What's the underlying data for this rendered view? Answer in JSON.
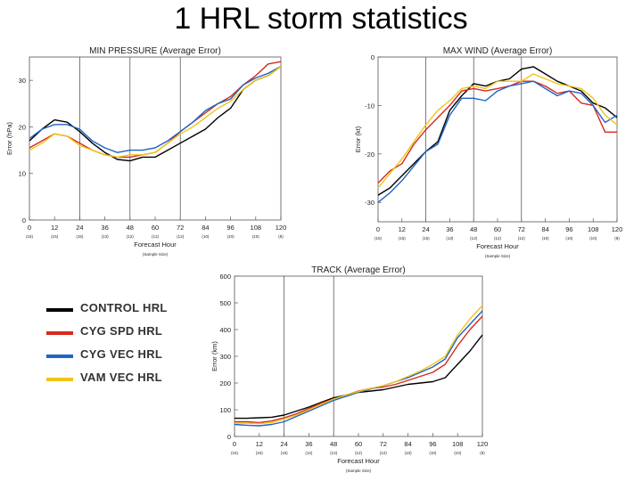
{
  "slide": {
    "title": "1 HRL storm statistics"
  },
  "legend": {
    "items": [
      {
        "label": "CONTROL HRL",
        "color": "#000000"
      },
      {
        "label": "CYG SPD HRL",
        "color": "#d62a1e"
      },
      {
        "label": "CYG VEC HRL",
        "color": "#1e64c8"
      },
      {
        "label": "VAM VEC HRL",
        "color": "#f0c419"
      }
    ]
  },
  "chart_data": [
    {
      "id": "min-pressure",
      "type": "line",
      "title": "MIN PRESSURE (Average Error)",
      "xlabel": "Forecast Hour",
      "ylabel": "Error (hPa)",
      "sample_size_label": "(Sample Size)",
      "x": [
        0,
        6,
        12,
        18,
        24,
        30,
        36,
        42,
        48,
        54,
        60,
        66,
        72,
        78,
        84,
        90,
        96,
        102,
        108,
        114,
        120
      ],
      "xticks": [
        0,
        12,
        24,
        36,
        48,
        60,
        72,
        84,
        96,
        108,
        120
      ],
      "xticklabels": [
        "0",
        "12",
        "24",
        "36",
        "48",
        "60",
        "72",
        "84",
        "96",
        "108",
        "120"
      ],
      "yticks": [
        0,
        10,
        20,
        30
      ],
      "yticklabels": [
        "0",
        "10",
        "20",
        "30"
      ],
      "sample_sizes": [
        "(15)",
        "(15)",
        "(15)",
        "(13)",
        "(12)",
        "(12)",
        "(12)",
        "(10)",
        "(10)",
        "(10)",
        "(8)"
      ],
      "vlines": [
        24,
        48,
        72
      ],
      "xlim": [
        0,
        120
      ],
      "ylim": [
        0,
        35
      ],
      "series": [
        {
          "name": "CONTROL HRL",
          "color": "#000000",
          "values": [
            17,
            19.5,
            21.5,
            21,
            19,
            16.5,
            14.5,
            13,
            12.7,
            13.5,
            13.5,
            15,
            16.5,
            18,
            19.5,
            22,
            24,
            28,
            30,
            31,
            33
          ]
        },
        {
          "name": "CYG SPD HRL",
          "color": "#d62a1e",
          "values": [
            15.5,
            17,
            18.5,
            18,
            16.5,
            15,
            14,
            13.5,
            13.5,
            14,
            14.5,
            16.5,
            19,
            21,
            23,
            25,
            26.5,
            29,
            31,
            33.5,
            34
          ]
        },
        {
          "name": "CYG VEC HRL",
          "color": "#1e64c8",
          "values": [
            17.5,
            19.5,
            20.5,
            20.5,
            19.5,
            17,
            15.5,
            14.5,
            15,
            15,
            15.5,
            17,
            19,
            21,
            23.5,
            25,
            26,
            29,
            30.5,
            31.5,
            33
          ]
        },
        {
          "name": "VAM VEC HRL",
          "color": "#f0c419",
          "values": [
            15,
            16.5,
            18.5,
            18,
            16,
            15,
            14,
            13.5,
            14,
            14,
            14.5,
            16.5,
            18.5,
            20,
            22,
            24,
            25.5,
            28,
            30,
            31,
            33
          ]
        }
      ]
    },
    {
      "id": "max-wind",
      "type": "line",
      "title": "MAX WIND (Average Error)",
      "xlabel": "Forecast Hour",
      "ylabel": "Error (kt)",
      "sample_size_label": "(Sample Size)",
      "x": [
        0,
        6,
        12,
        18,
        24,
        30,
        36,
        42,
        48,
        54,
        60,
        66,
        72,
        78,
        84,
        90,
        96,
        102,
        108,
        114,
        120
      ],
      "xticks": [
        0,
        12,
        24,
        36,
        48,
        60,
        72,
        84,
        96,
        108,
        120
      ],
      "xticklabels": [
        "0",
        "12",
        "24",
        "36",
        "48",
        "60",
        "72",
        "84",
        "96",
        "108",
        "120"
      ],
      "yticks": [
        0,
        -10,
        -20,
        -30
      ],
      "yticklabels": [
        "0",
        "-10",
        "-20",
        "-30"
      ],
      "sample_sizes": [
        "(15)",
        "(15)",
        "(15)",
        "(13)",
        "(12)",
        "(12)",
        "(12)",
        "(10)",
        "(10)",
        "(10)",
        "(8)"
      ],
      "vlines": [
        24,
        48,
        72
      ],
      "xlim": [
        0,
        120
      ],
      "ylim": [
        -34,
        0
      ],
      "series": [
        {
          "name": "CONTROL HRL",
          "color": "#000000",
          "values": [
            -28.5,
            -27,
            -24.5,
            -22,
            -19.5,
            -17.5,
            -11,
            -8,
            -5.5,
            -6,
            -5,
            -4.5,
            -2.5,
            -2,
            -3.5,
            -5,
            -6,
            -7,
            -9.5,
            -10.5,
            -12.5
          ]
        },
        {
          "name": "CYG SPD HRL",
          "color": "#d62a1e",
          "values": [
            -26,
            -23.5,
            -22,
            -18,
            -15,
            -12.5,
            -10,
            -7,
            -6.5,
            -7,
            -6.5,
            -6,
            -5,
            -5,
            -6,
            -7.5,
            -7,
            -9.5,
            -10,
            -15.5,
            -15.5
          ]
        },
        {
          "name": "CYG VEC HRL",
          "color": "#1e64c8",
          "values": [
            -30,
            -28,
            -25.5,
            -22.5,
            -19.5,
            -18,
            -12,
            -8.5,
            -8.5,
            -9,
            -7,
            -6,
            -5.5,
            -5,
            -6.5,
            -8,
            -7,
            -7.5,
            -10,
            -13.5,
            -12
          ]
        },
        {
          "name": "VAM VEC HRL",
          "color": "#f0c419",
          "values": [
            -27,
            -24,
            -21,
            -17.5,
            -14,
            -11,
            -9,
            -6.5,
            -6,
            -6.5,
            -5,
            -5,
            -5,
            -3.5,
            -4.5,
            -5.5,
            -6,
            -6.5,
            -8.5,
            -12,
            -14
          ]
        }
      ]
    },
    {
      "id": "track",
      "type": "line",
      "title": "TRACK (Average Error)",
      "xlabel": "Forecast Hour",
      "ylabel": "Error (km)",
      "sample_size_label": "(Sample Size)",
      "x": [
        0,
        6,
        12,
        18,
        24,
        30,
        36,
        42,
        48,
        54,
        60,
        66,
        72,
        78,
        84,
        90,
        96,
        102,
        108,
        114,
        120
      ],
      "xticks": [
        0,
        12,
        24,
        36,
        48,
        60,
        72,
        84,
        96,
        108,
        120
      ],
      "xticklabels": [
        "0",
        "12",
        "24",
        "36",
        "48",
        "60",
        "72",
        "84",
        "96",
        "108",
        "120"
      ],
      "yticks": [
        0,
        100,
        200,
        300,
        400,
        500,
        600
      ],
      "yticklabels": [
        "0",
        "100",
        "200",
        "300",
        "400",
        "500",
        "600"
      ],
      "sample_sizes": [
        "(15)",
        "(15)",
        "(15)",
        "(12)",
        "(12)",
        "(12)",
        "(12)",
        "(10)",
        "(10)",
        "(10)",
        "(8)"
      ],
      "vlines": [
        24,
        48
      ],
      "xlim": [
        0,
        120
      ],
      "ylim": [
        0,
        600
      ],
      "series": [
        {
          "name": "CONTROL HRL",
          "color": "#000000",
          "values": [
            68,
            68,
            70,
            72,
            80,
            95,
            110,
            128,
            145,
            155,
            165,
            170,
            175,
            185,
            195,
            200,
            205,
            220,
            270,
            320,
            380
          ]
        },
        {
          "name": "CYG SPD HRL",
          "color": "#d62a1e",
          "values": [
            55,
            55,
            52,
            58,
            70,
            85,
            105,
            125,
            140,
            155,
            170,
            180,
            185,
            195,
            210,
            225,
            240,
            270,
            340,
            400,
            450
          ]
        },
        {
          "name": "CYG VEC HRL",
          "color": "#1e64c8",
          "values": [
            45,
            42,
            40,
            45,
            55,
            75,
            95,
            115,
            135,
            150,
            165,
            178,
            190,
            205,
            220,
            240,
            260,
            290,
            370,
            420,
            470
          ]
        },
        {
          "name": "VAM VEC HRL",
          "color": "#f0c419",
          "values": [
            50,
            50,
            48,
            52,
            65,
            80,
            100,
            120,
            140,
            155,
            168,
            180,
            190,
            205,
            225,
            245,
            270,
            300,
            380,
            440,
            490
          ]
        }
      ]
    }
  ]
}
